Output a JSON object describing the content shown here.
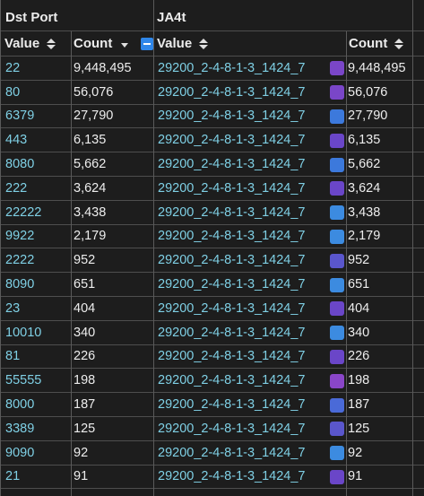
{
  "groups": {
    "dst_port": "Dst Port",
    "ja4t": "JA4t"
  },
  "columns": {
    "value1": "Value",
    "count1": "Count",
    "value2": "Value",
    "count2": "Count"
  },
  "rows": [
    {
      "port": "22",
      "count": "9,448,495",
      "ja4t": "29200_2-4-8-1-3_1424_7",
      "ja4t_count": "9,448,495",
      "color": "#7a46c8"
    },
    {
      "port": "80",
      "count": "56,076",
      "ja4t": "29200_2-4-8-1-3_1424_7",
      "ja4t_count": "56,076",
      "color": "#7a46c8"
    },
    {
      "port": "6379",
      "count": "27,790",
      "ja4t": "29200_2-4-8-1-3_1424_7",
      "ja4t_count": "27,790",
      "color": "#3c79dc"
    },
    {
      "port": "443",
      "count": "6,135",
      "ja4t": "29200_2-4-8-1-3_1424_7",
      "ja4t_count": "6,135",
      "color": "#6a46c8"
    },
    {
      "port": "8080",
      "count": "5,662",
      "ja4t": "29200_2-4-8-1-3_1424_7",
      "ja4t_count": "5,662",
      "color": "#3c79dc"
    },
    {
      "port": "222",
      "count": "3,624",
      "ja4t": "29200_2-4-8-1-3_1424_7",
      "ja4t_count": "3,624",
      "color": "#6a46c8"
    },
    {
      "port": "22222",
      "count": "3,438",
      "ja4t": "29200_2-4-8-1-3_1424_7",
      "ja4t_count": "3,438",
      "color": "#3c8be0"
    },
    {
      "port": "9922",
      "count": "2,179",
      "ja4t": "29200_2-4-8-1-3_1424_7",
      "ja4t_count": "2,179",
      "color": "#3c8be0"
    },
    {
      "port": "2222",
      "count": "952",
      "ja4t": "29200_2-4-8-1-3_1424_7",
      "ja4t_count": "952",
      "color": "#5a56cc"
    },
    {
      "port": "8090",
      "count": "651",
      "ja4t": "29200_2-4-8-1-3_1424_7",
      "ja4t_count": "651",
      "color": "#3c8be0"
    },
    {
      "port": "23",
      "count": "404",
      "ja4t": "29200_2-4-8-1-3_1424_7",
      "ja4t_count": "404",
      "color": "#6a46c8"
    },
    {
      "port": "10010",
      "count": "340",
      "ja4t": "29200_2-4-8-1-3_1424_7",
      "ja4t_count": "340",
      "color": "#3c8be0"
    },
    {
      "port": "81",
      "count": "226",
      "ja4t": "29200_2-4-8-1-3_1424_7",
      "ja4t_count": "226",
      "color": "#6a46c8"
    },
    {
      "port": "55555",
      "count": "198",
      "ja4t": "29200_2-4-8-1-3_1424_7",
      "ja4t_count": "198",
      "color": "#8a46c8"
    },
    {
      "port": "8000",
      "count": "187",
      "ja4t": "29200_2-4-8-1-3_1424_7",
      "ja4t_count": "187",
      "color": "#4a6ad8"
    },
    {
      "port": "3389",
      "count": "125",
      "ja4t": "29200_2-4-8-1-3_1424_7",
      "ja4t_count": "125",
      "color": "#5a56cc"
    },
    {
      "port": "9090",
      "count": "92",
      "ja4t": "29200_2-4-8-1-3_1424_7",
      "ja4t_count": "92",
      "color": "#3c8be0"
    },
    {
      "port": "21",
      "count": "91",
      "ja4t": "29200_2-4-8-1-3_1424_7",
      "ja4t_count": "91",
      "color": "#6a46c8"
    }
  ]
}
